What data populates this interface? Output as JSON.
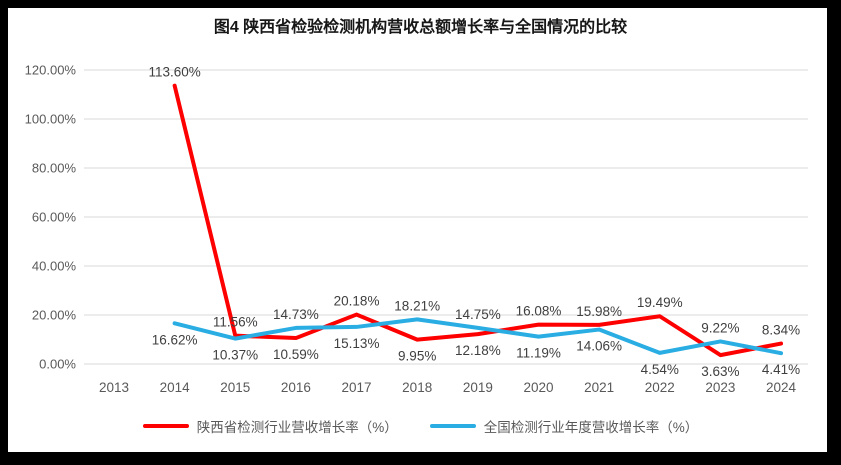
{
  "figure": {
    "title": "图4 陕西省检验检测机构营收总额增长率与全国情况的比较"
  },
  "legend": {
    "items": [
      {
        "label": "陕西省检测行业营收增长率（%）",
        "color": "#fe0000"
      },
      {
        "label": "全国检测行业年度营收增长率（%）",
        "color": "#29ade3"
      }
    ]
  },
  "colors": {
    "gridline": "#d9d9d9",
    "axis_text": "#595959",
    "data_label_text": "#3f3f3f",
    "red_series": "#fe0000",
    "blue_series": "#29ade3",
    "frame": "#000000",
    "background": "#ffffff"
  },
  "chart_data": {
    "type": "line",
    "title": "图4 陕西省检验检测机构营收总额增长率与全国情况的比较",
    "categories": [
      "2013",
      "2014",
      "2015",
      "2016",
      "2017",
      "2018",
      "2019",
      "2020",
      "2021",
      "2022",
      "2023",
      "2024"
    ],
    "series": [
      {
        "name": "陕西省检测行业营收增长率（%）",
        "color": "#fe0000",
        "values": [
          null,
          113.6,
          11.56,
          10.59,
          20.18,
          9.95,
          12.18,
          16.08,
          15.98,
          19.49,
          3.63,
          8.34
        ],
        "labels": [
          null,
          "113.60%",
          "11.56%",
          "10.59%",
          "20.18%",
          "9.95%",
          "12.18%",
          "16.08%",
          "15.98%",
          "19.49%",
          "3.63%",
          "8.34%"
        ]
      },
      {
        "name": "全国检测行业年度营收增长率（%）",
        "color": "#29ade3",
        "values": [
          null,
          16.62,
          10.37,
          14.73,
          15.13,
          18.21,
          14.75,
          11.19,
          14.06,
          4.54,
          9.22,
          4.41
        ],
        "labels": [
          null,
          "16.62%",
          "10.37%",
          "14.73%",
          "15.13%",
          "18.21%",
          "14.75%",
          "11.19%",
          "14.06%",
          "4.54%",
          "9.22%",
          "4.41%"
        ]
      }
    ],
    "y_axis": {
      "min": 0,
      "max": 120,
      "step": 20,
      "tick_labels": [
        "0.00%",
        "20.00%",
        "40.00%",
        "60.00%",
        "80.00%",
        "100.00%",
        "120.00%"
      ]
    },
    "x_axis": {
      "label": ""
    },
    "grid": true,
    "legend_position": "bottom",
    "data_labels": true
  }
}
